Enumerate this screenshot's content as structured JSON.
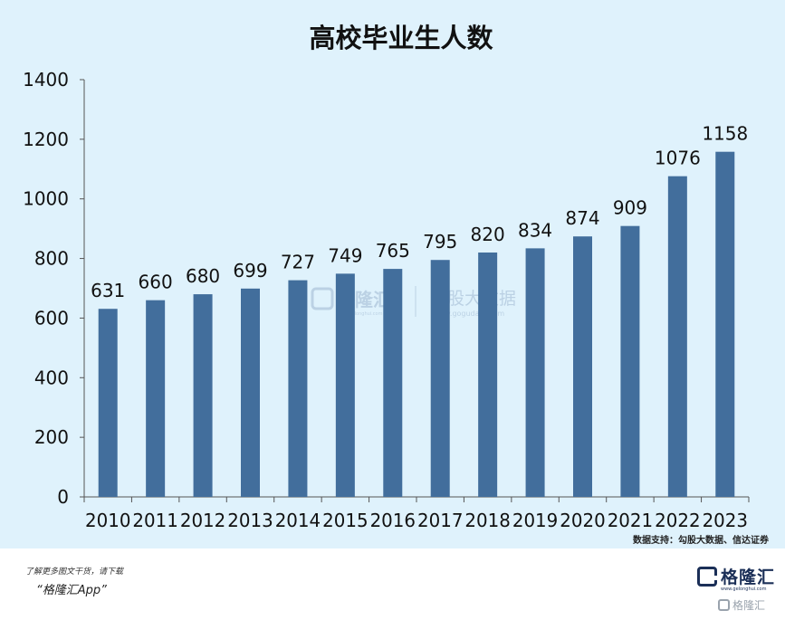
{
  "chart_data": {
    "type": "bar",
    "title": "高校毕业生人数",
    "categories": [
      "2010",
      "2011",
      "2012",
      "2013",
      "2014",
      "2015",
      "2016",
      "2017",
      "2018",
      "2019",
      "2020",
      "2021",
      "2022",
      "2023"
    ],
    "values": [
      631,
      660,
      680,
      699,
      727,
      749,
      765,
      795,
      820,
      834,
      874,
      909,
      1076,
      1158
    ],
    "data_labels": [
      "631",
      "660",
      "680",
      "699",
      "727",
      "749",
      "765",
      "795",
      "820",
      "834",
      "874",
      "909",
      "1076",
      "1158"
    ],
    "ylim": [
      0,
      1400
    ],
    "yticks": [
      0,
      200,
      400,
      600,
      800,
      1000,
      1200,
      1400
    ],
    "ytick_labels": [
      "0",
      "200",
      "400",
      "600",
      "800",
      "1000",
      "1200",
      "1400"
    ],
    "xlabel": "",
    "ylabel": "",
    "grid": false,
    "bar_color": "#426e9c",
    "background_color": "#dff2fc"
  },
  "source_note": "数据支持：勾股大数据、信达证券",
  "watermark": {
    "left_brand": "格隆汇",
    "left_url": "www.gelonghui.com",
    "right_brand": "勾股大数据",
    "right_url": "www.gogudata.com"
  },
  "footer": {
    "promo_text": "了解更多图文干货，请下载",
    "app_name": "“格隆汇App”",
    "logo_name": "格隆汇",
    "logo_url": "www.gelonghui.com",
    "corner_mark": "格隆汇"
  }
}
